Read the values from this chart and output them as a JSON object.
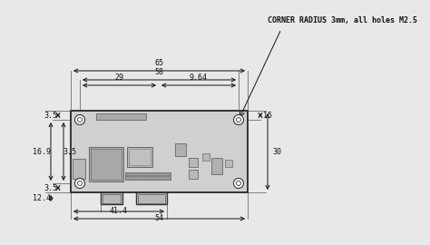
{
  "bg_color": "#e8e8e8",
  "line_color": "#333333",
  "board_color": "#cccccc",
  "pcb_color": "#c0c0c0",
  "corner_radius_note": "CORNER RADIUS 3mm, all holes M2.5",
  "dim_65": "65",
  "dim_58": "58",
  "dim_29": "29",
  "dim_9_64": "9.64",
  "dim_3_5_top": "3.5",
  "dim_15": "15",
  "dim_30": "30",
  "dim_16_9": "16.9",
  "dim_3_5_left": "3.5",
  "dim_3_5_bot": "3.5",
  "dim_12_4": "12.4",
  "dim_41_4": "41.4",
  "dim_54": "54",
  "font_size": 6.0,
  "arrow_mutation_scale": 7
}
